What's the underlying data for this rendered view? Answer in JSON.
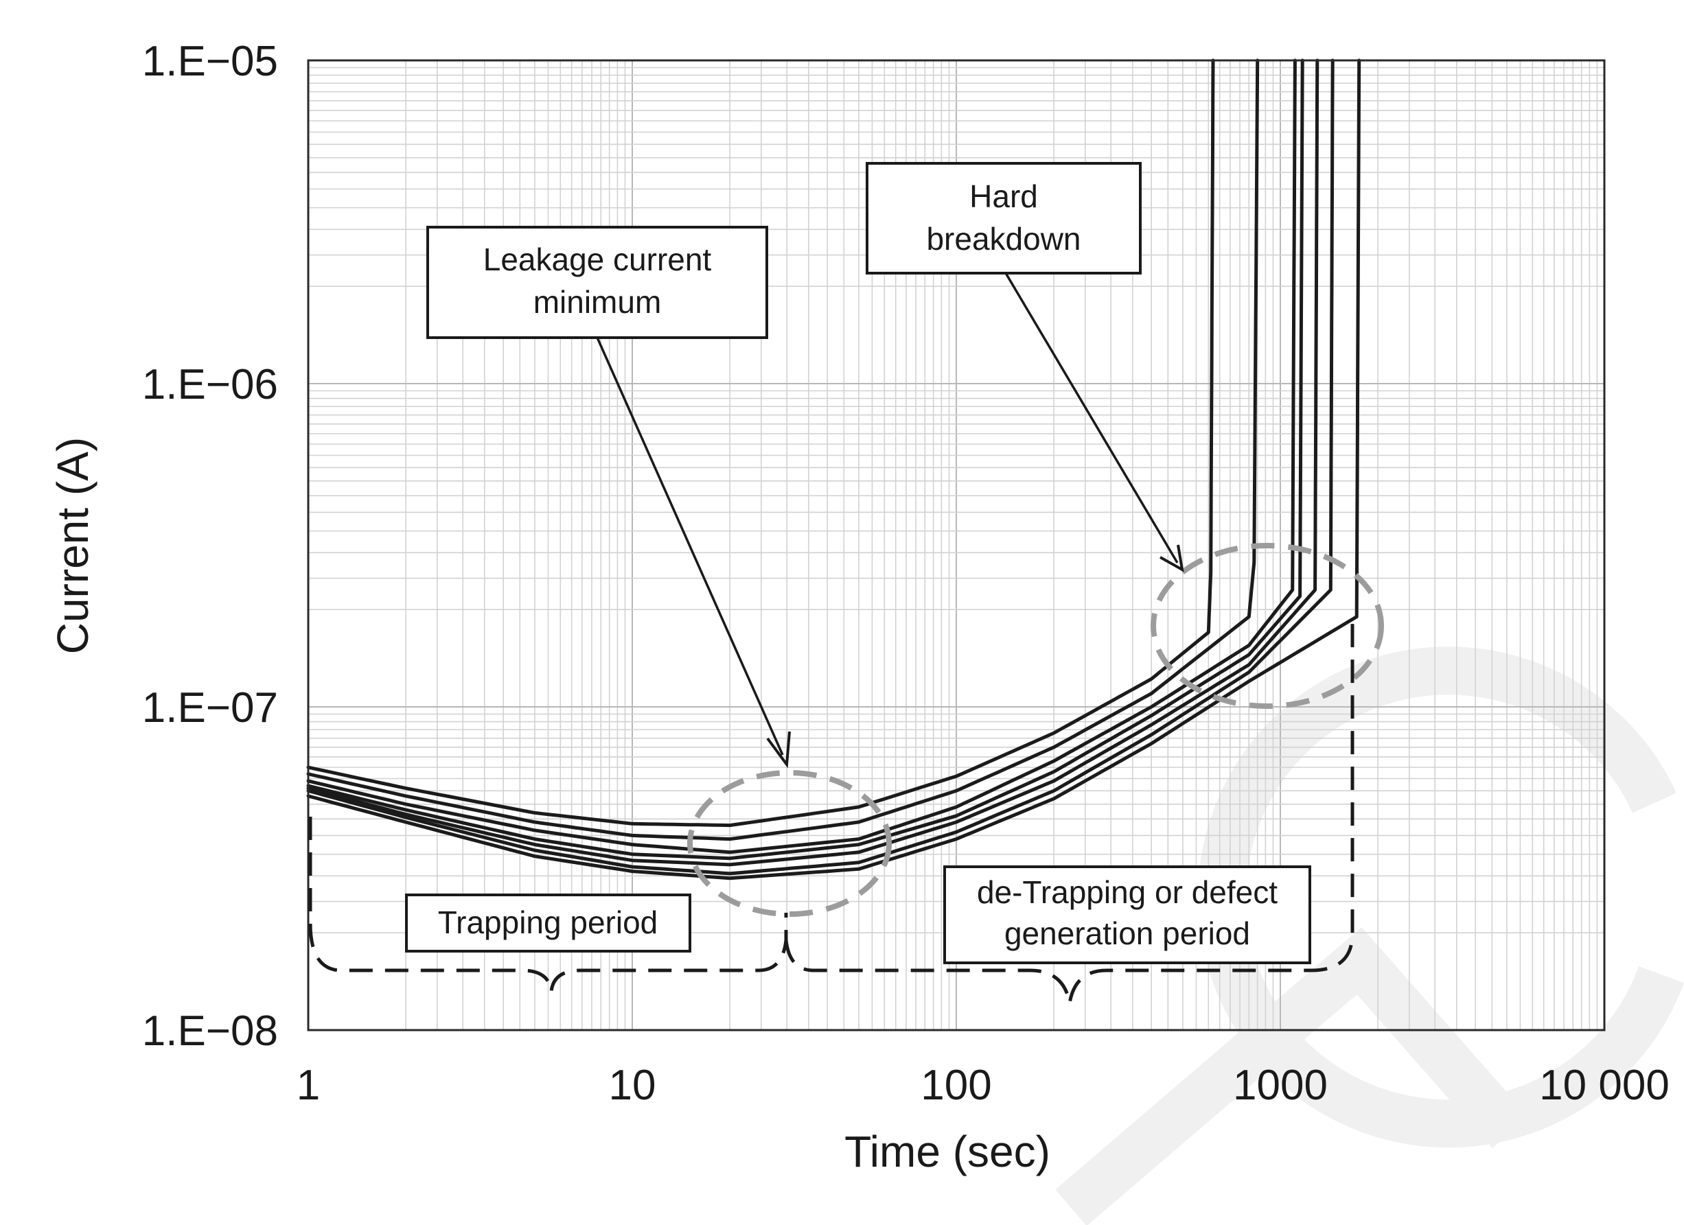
{
  "chart_data": {
    "type": "line",
    "title": "",
    "xlabel": "Time (sec)",
    "ylabel": "Current (A)",
    "x_scale": "log",
    "y_scale": "log",
    "xlim": [
      1,
      10000
    ],
    "ylim": [
      1e-08,
      1e-05
    ],
    "x_ticks": [
      1,
      10,
      100,
      1000,
      10000
    ],
    "x_tick_labels": [
      "1",
      "10",
      "100",
      "1000",
      "10 000"
    ],
    "y_ticks": [
      1e-08,
      1e-07,
      1e-06,
      1e-05
    ],
    "y_tick_labels": [
      "1.E−08",
      "1.E−07",
      "1.E−06",
      "1.E−05"
    ],
    "grid": true,
    "series": [
      {
        "x": [
          1,
          2,
          5,
          10,
          20,
          50,
          100,
          200,
          400,
          600,
          610,
          620
        ],
        "y": [
          6.5e-08,
          5.6e-08,
          4.7e-08,
          4.35e-08,
          4.3e-08,
          4.9e-08,
          6.1e-08,
          8.3e-08,
          1.22e-07,
          1.7e-07,
          2.6e-07,
          1e-05
        ]
      },
      {
        "x": [
          1,
          2,
          5,
          10,
          20,
          50,
          100,
          200,
          400,
          800,
          830,
          850
        ],
        "y": [
          6.2e-08,
          5.3e-08,
          4.4e-08,
          4e-08,
          3.9e-08,
          4.4e-08,
          5.5e-08,
          7.5e-08,
          1.1e-07,
          1.9e-07,
          2.8e-07,
          1e-05
        ]
      },
      {
        "x": [
          1,
          2,
          5,
          10,
          20,
          50,
          100,
          200,
          400,
          800,
          1090,
          1110
        ],
        "y": [
          5.9e-08,
          5e-08,
          4.15e-08,
          3.75e-08,
          3.55e-08,
          3.9e-08,
          4.9e-08,
          6.8e-08,
          1e-07,
          1.55e-07,
          2.3e-07,
          1e-05
        ]
      },
      {
        "x": [
          1,
          2,
          5,
          10,
          20,
          50,
          100,
          200,
          400,
          800,
          1150,
          1170
        ],
        "y": [
          5.7e-08,
          4.8e-08,
          3.9e-08,
          3.5e-08,
          3.4e-08,
          3.75e-08,
          4.6e-08,
          6.3e-08,
          9.4e-08,
          1.45e-07,
          2.2e-07,
          1e-05
        ]
      },
      {
        "x": [
          1,
          2,
          5,
          10,
          20,
          50,
          100,
          200,
          400,
          800,
          1280,
          1300
        ],
        "y": [
          5.6e-08,
          4.65e-08,
          3.75e-08,
          3.35e-08,
          3.25e-08,
          3.55e-08,
          4.4e-08,
          5.9e-08,
          8.8e-08,
          1.35e-07,
          2.3e-07,
          1e-05
        ]
      },
      {
        "x": [
          1,
          2,
          5,
          10,
          20,
          50,
          100,
          200,
          400,
          800,
          1430,
          1450
        ],
        "y": [
          5.5e-08,
          4.55e-08,
          3.6e-08,
          3.2e-08,
          3.05e-08,
          3.3e-08,
          4.1e-08,
          5.5e-08,
          8.2e-08,
          1.28e-07,
          2.3e-07,
          1e-05
        ]
      },
      {
        "x": [
          1,
          2,
          5,
          10,
          20,
          50,
          100,
          200,
          400,
          800,
          1720,
          1750
        ],
        "y": [
          5.3e-08,
          4.4e-08,
          3.45e-08,
          3.1e-08,
          2.95e-08,
          3.15e-08,
          3.9e-08,
          5.2e-08,
          7.7e-08,
          1.2e-07,
          1.9e-07,
          1e-05
        ]
      }
    ],
    "annotations": [
      {
        "lines": [
          "Leakage current",
          "minimum"
        ]
      },
      {
        "lines": [
          "Hard",
          "breakdown"
        ]
      },
      {
        "lines": [
          "Trapping period"
        ]
      },
      {
        "lines": [
          "de-Trapping or defect",
          "generation period"
        ]
      }
    ]
  }
}
